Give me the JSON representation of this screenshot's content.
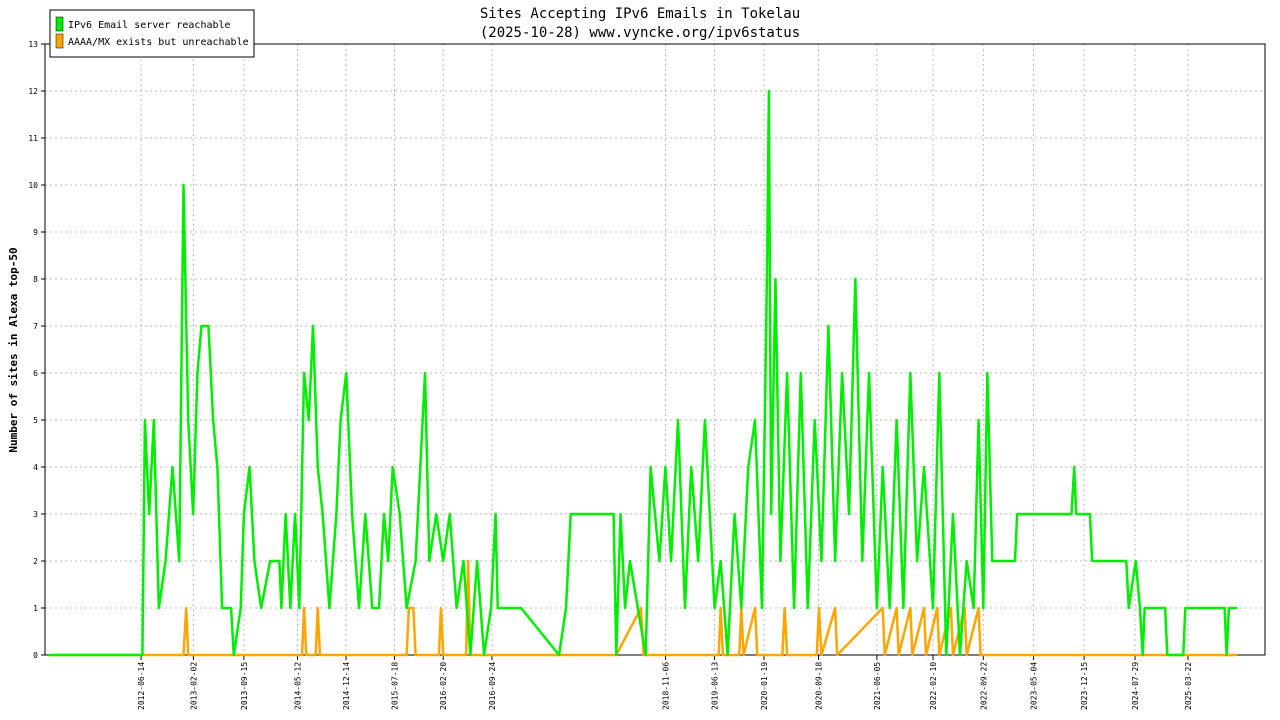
{
  "chart_data": {
    "type": "line",
    "title": "Sites Accepting IPv6 Emails in Tokelau",
    "subtitle": "(2025-10-28) www.vyncke.org/ipv6status",
    "y_label": "Number of sites in Alexa top-50",
    "xlim": [
      "2011-04-13",
      "2026-02-28"
    ],
    "xticks": [
      "2012-06-14",
      "2013-02-02",
      "2013-09-15",
      "2014-05-12",
      "2014-12-14",
      "2015-07-18",
      "2016-02-20",
      "2016-09-24",
      "2018-11-06",
      "2019-06-13",
      "2020-01-19",
      "2020-09-18",
      "2021-06-05",
      "2022-02-10",
      "2022-09-22",
      "2023-05-04",
      "2023-12-15",
      "2024-07-29",
      "2025-03-22"
    ],
    "ylim": [
      0,
      13
    ],
    "yticks": [
      0,
      1,
      2,
      3,
      4,
      5,
      6,
      7,
      8,
      9,
      10,
      11,
      12,
      13
    ],
    "grid": true,
    "legend": "upper left",
    "series": [
      {
        "name": "IPv6 Email server reachable",
        "color": "#00ee00",
        "x": [
          "2011-05-01",
          "2012-06-20",
          "2012-07-01",
          "2012-07-20",
          "2012-08-10",
          "2012-09-01",
          "2012-10-01",
          "2012-11-01",
          "2012-12-01",
          "2012-12-20",
          "2013-01-10",
          "2013-02-01",
          "2013-02-20",
          "2013-03-10",
          "2013-04-10",
          "2013-05-01",
          "2013-05-20",
          "2013-06-10",
          "2013-07-20",
          "2013-08-01",
          "2013-09-01",
          "2013-09-15",
          "2013-10-10",
          "2013-11-01",
          "2013-12-01",
          "2014-01-10",
          "2014-02-20",
          "2014-03-01",
          "2014-03-20",
          "2014-04-10",
          "2014-05-01",
          "2014-05-20",
          "2014-06-10",
          "2014-07-01",
          "2014-07-20",
          "2014-08-10",
          "2014-09-01",
          "2014-10-01",
          "2014-11-01",
          "2014-11-20",
          "2014-12-15",
          "2015-01-10",
          "2015-02-10",
          "2015-03-10",
          "2015-04-10",
          "2015-05-10",
          "2015-06-01",
          "2015-06-20",
          "2015-07-10",
          "2015-08-10",
          "2015-09-10",
          "2015-10-20",
          "2015-12-01",
          "2015-12-20",
          "2016-01-20",
          "2016-02-20",
          "2016-03-20",
          "2016-04-20",
          "2016-05-20",
          "2016-06-20",
          "2016-07-20",
          "2016-08-20",
          "2016-09-20",
          "2016-10-10",
          "2016-10-20",
          "2017-02-01",
          "2017-07-20",
          "2017-08-20",
          "2017-09-10",
          "2018-03-20",
          "2018-04-01",
          "2018-04-20",
          "2018-05-10",
          "2018-06-01",
          "2018-08-10",
          "2018-09-01",
          "2018-10-10",
          "2018-11-06",
          "2018-12-01",
          "2019-01-01",
          "2019-02-01",
          "2019-03-01",
          "2019-04-01",
          "2019-05-01",
          "2019-06-13",
          "2019-07-10",
          "2019-08-10",
          "2019-09-10",
          "2019-10-10",
          "2019-11-10",
          "2019-12-10",
          "2020-01-10",
          "2020-02-01",
          "2020-02-10",
          "2020-02-20",
          "2020-03-10",
          "2020-04-01",
          "2020-05-01",
          "2020-06-01",
          "2020-07-01",
          "2020-08-01",
          "2020-09-01",
          "2020-10-01",
          "2020-11-01",
          "2020-12-01",
          "2021-01-01",
          "2021-02-01",
          "2021-03-01",
          "2021-04-01",
          "2021-05-01",
          "2021-06-05",
          "2021-07-01",
          "2021-08-01",
          "2021-09-01",
          "2021-10-01",
          "2021-11-01",
          "2021-12-01",
          "2022-01-01",
          "2022-02-10",
          "2022-03-10",
          "2022-04-10",
          "2022-05-10",
          "2022-06-10",
          "2022-07-10",
          "2022-08-10",
          "2022-09-01",
          "2022-09-22",
          "2022-10-10",
          "2022-11-01",
          "2023-02-10",
          "2023-02-20",
          "2023-10-20",
          "2023-11-01",
          "2023-11-10",
          "2024-01-10",
          "2024-01-20",
          "2024-06-20",
          "2024-07-01",
          "2024-08-01",
          "2024-08-20",
          "2024-09-01",
          "2024-09-10",
          "2024-12-10",
          "2024-12-20",
          "2025-03-01",
          "2025-03-10",
          "2025-09-01",
          "2025-09-10",
          "2025-09-20",
          "2025-10-28"
        ],
        "values": [
          0,
          0,
          5,
          3,
          5,
          1,
          2,
          4,
          2,
          10,
          5,
          3,
          6,
          7,
          7,
          5,
          4,
          1,
          1,
          0,
          1,
          3,
          4,
          2,
          1,
          2,
          2,
          1,
          3,
          1,
          3,
          1,
          6,
          5,
          7,
          4,
          3,
          1,
          3,
          5,
          6,
          3,
          1,
          3,
          1,
          1,
          3,
          2,
          4,
          3,
          1,
          2,
          6,
          2,
          3,
          2,
          3,
          1,
          2,
          0,
          2,
          0,
          1,
          3,
          1,
          1,
          0,
          1,
          3,
          3,
          0,
          3,
          1,
          2,
          0,
          4,
          2,
          4,
          2,
          5,
          1,
          4,
          2,
          5,
          1,
          2,
          0,
          3,
          1,
          4,
          5,
          1,
          8,
          12,
          3,
          8,
          2,
          6,
          1,
          6,
          1,
          5,
          2,
          7,
          2,
          6,
          3,
          8,
          2,
          6,
          1,
          4,
          1,
          5,
          1,
          6,
          2,
          4,
          1,
          6,
          0,
          3,
          0,
          2,
          1,
          5,
          1,
          6,
          2,
          2,
          3,
          3,
          4,
          3,
          3,
          2,
          2,
          1,
          2,
          1,
          0,
          1,
          1,
          0,
          0,
          1,
          1,
          0,
          1,
          1
        ]
      },
      {
        "name": "AAAA/MX exists but unreachable",
        "color": "#ffa500",
        "x": [
          "2011-05-01",
          "2012-12-20",
          "2013-01-01",
          "2013-01-10",
          "2014-06-01",
          "2014-06-10",
          "2014-06-20",
          "2014-08-01",
          "2014-08-10",
          "2014-08-20",
          "2015-09-10",
          "2015-09-20",
          "2015-10-10",
          "2015-10-20",
          "2016-02-01",
          "2016-02-10",
          "2016-02-20",
          "2016-06-01",
          "2016-06-10",
          "2016-06-20",
          "2018-04-01",
          "2018-07-20",
          "2018-08-01",
          "2019-07-01",
          "2019-07-10",
          "2019-07-20",
          "2019-10-01",
          "2019-10-10",
          "2019-10-20",
          "2019-12-10",
          "2019-12-20",
          "2020-04-10",
          "2020-04-20",
          "2020-05-01",
          "2020-09-10",
          "2020-09-20",
          "2020-10-01",
          "2020-12-01",
          "2020-12-10",
          "2021-07-01",
          "2021-07-10",
          "2021-09-01",
          "2021-09-10",
          "2021-11-01",
          "2021-11-10",
          "2022-01-01",
          "2022-01-10",
          "2022-03-01",
          "2022-03-10",
          "2022-05-01",
          "2022-05-10",
          "2022-07-01",
          "2022-07-10",
          "2022-09-01",
          "2022-09-10",
          "2025-10-28"
        ],
        "values": [
          0,
          0,
          1,
          0,
          0,
          1,
          0,
          0,
          1,
          0,
          0,
          1,
          1,
          0,
          0,
          1,
          0,
          0,
          2,
          0,
          0,
          1,
          0,
          0,
          1,
          0,
          0,
          1,
          0,
          1,
          0,
          0,
          1,
          0,
          0,
          1,
          0,
          1,
          0,
          1,
          0,
          1,
          0,
          1,
          0,
          1,
          0,
          1,
          0,
          1,
          0,
          1,
          0,
          1,
          0,
          0
        ]
      }
    ]
  }
}
